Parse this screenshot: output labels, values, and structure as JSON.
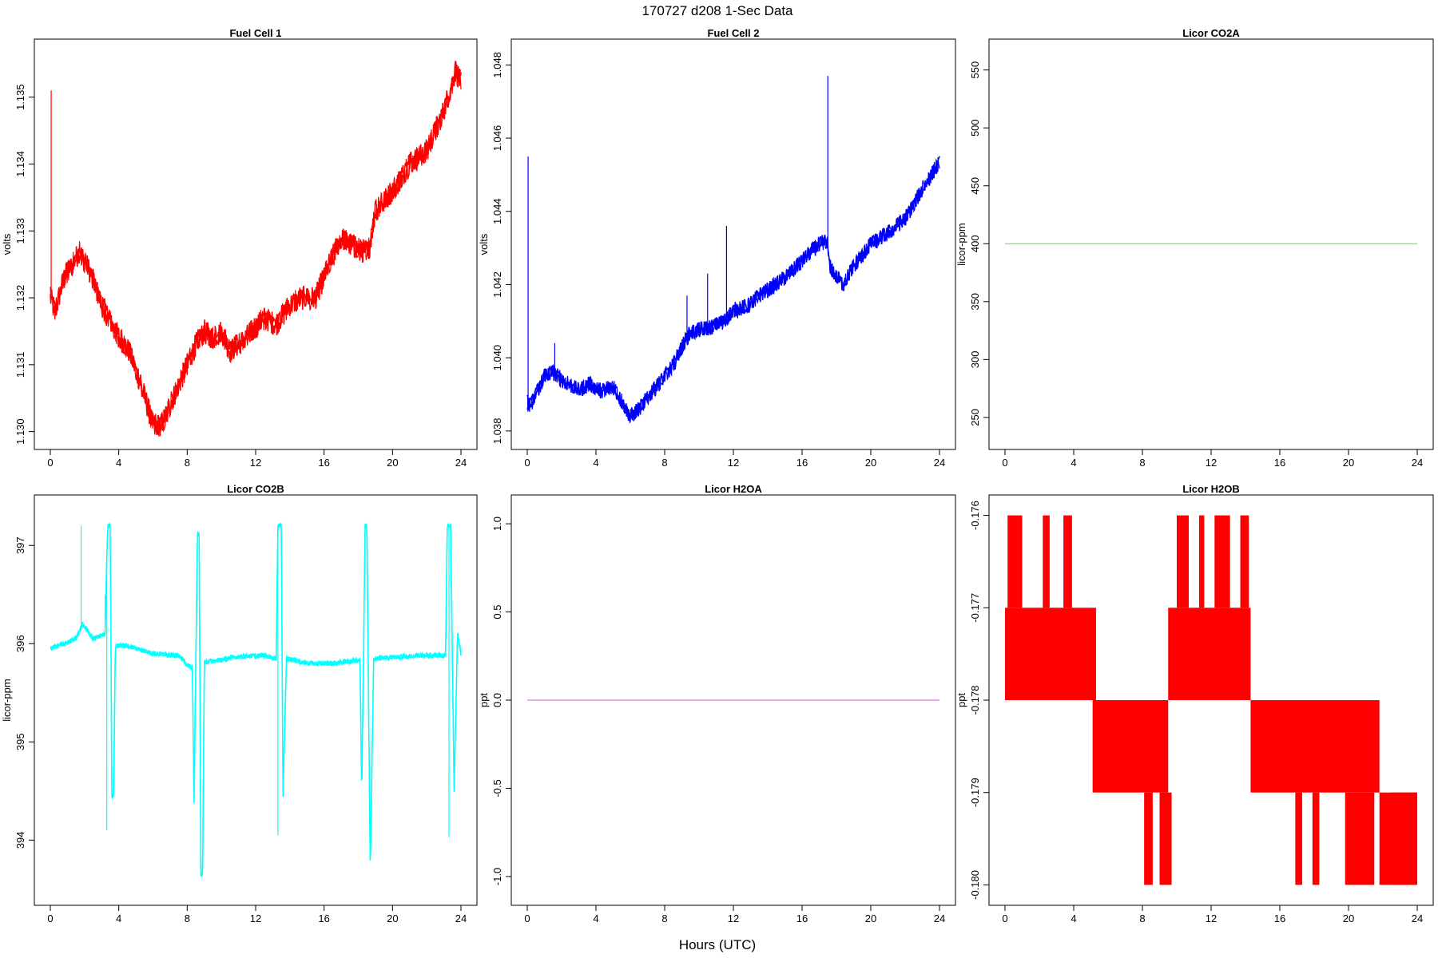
{
  "figure": {
    "title": "170727   d208   1-Sec Data",
    "xlabel": "Hours (UTC)"
  },
  "chart_data": [
    {
      "type": "line",
      "title": "Fuel Cell 1",
      "ylabel": "volts",
      "color": "#ff0000",
      "xlim": [
        0,
        24
      ],
      "ylim": [
        1.1299,
        1.1357
      ],
      "xticks": [
        0,
        4,
        8,
        12,
        16,
        20,
        24
      ],
      "yticks": [
        1.13,
        1.131,
        1.132,
        1.133,
        1.134,
        1.135
      ],
      "ytick_labels": [
        "1.130",
        "1.131",
        "1.132",
        "1.133",
        "1.134",
        "1.135"
      ],
      "noise": 0.00018,
      "spikes": [
        [
          0.05,
          1.1351
        ]
      ],
      "x": [
        0,
        0.3,
        0.8,
        1.3,
        1.7,
        2.3,
        3.0,
        3.8,
        4.6,
        5.3,
        6.0,
        6.5,
        7.0,
        7.5,
        8.0,
        8.5,
        9.0,
        9.5,
        10.0,
        10.5,
        11.0,
        11.8,
        12.5,
        13.2,
        14.0,
        14.8,
        15.5,
        16.3,
        17.0,
        17.6,
        18.2,
        18.6,
        19.0,
        20.0,
        21.0,
        22.0,
        23.0,
        23.7,
        24.0
      ],
      "y": [
        1.132,
        1.1318,
        1.1323,
        1.1325,
        1.1327,
        1.1324,
        1.1319,
        1.1315,
        1.1312,
        1.1307,
        1.1301,
        1.1301,
        1.1304,
        1.1307,
        1.131,
        1.1313,
        1.1315,
        1.1314,
        1.1315,
        1.1312,
        1.1313,
        1.1315,
        1.1317,
        1.1316,
        1.1319,
        1.132,
        1.132,
        1.1325,
        1.1329,
        1.1328,
        1.1327,
        1.1327,
        1.1333,
        1.1336,
        1.134,
        1.1342,
        1.1348,
        1.1354,
        1.1352
      ]
    },
    {
      "type": "line",
      "title": "Fuel Cell 2",
      "ylabel": "volts",
      "color": "#0000ff",
      "xlim": [
        0,
        24
      ],
      "ylim": [
        1.0378,
        1.0484
      ],
      "xticks": [
        0,
        4,
        8,
        12,
        16,
        20,
        24
      ],
      "yticks": [
        1.038,
        1.04,
        1.042,
        1.044,
        1.046,
        1.048
      ],
      "ytick_labels": [
        "1.038",
        "1.040",
        "1.042",
        "1.044",
        "1.046",
        "1.048"
      ],
      "noise": 0.00022,
      "spikes": [
        [
          0.05,
          1.0455
        ],
        [
          1.6,
          1.0404
        ],
        [
          9.3,
          1.0417
        ],
        [
          10.5,
          1.0423
        ],
        [
          11.6,
          1.0436
        ],
        [
          17.5,
          1.0477
        ]
      ],
      "x": [
        0,
        0.2,
        1.0,
        1.5,
        2.0,
        3.0,
        3.6,
        4.3,
        5.0,
        5.5,
        6.0,
        6.5,
        7.5,
        8.5,
        9.0,
        9.5,
        10.5,
        11.5,
        12.0,
        12.8,
        13.5,
        14.5,
        15.5,
        16.3,
        17.0,
        17.45,
        17.6,
        18.0,
        18.4,
        19.0,
        20.0,
        21.0,
        22.0,
        23.0,
        23.8,
        24.0
      ],
      "y": [
        1.0388,
        1.0387,
        1.0395,
        1.0396,
        1.0394,
        1.0391,
        1.0393,
        1.0391,
        1.0392,
        1.0388,
        1.0384,
        1.0386,
        1.0392,
        1.0398,
        1.0403,
        1.0407,
        1.0408,
        1.041,
        1.0413,
        1.0414,
        1.0417,
        1.042,
        1.0424,
        1.0428,
        1.0431,
        1.0432,
        1.0425,
        1.0422,
        1.042,
        1.0425,
        1.0431,
        1.0434,
        1.0438,
        1.0446,
        1.0452,
        1.0453
      ]
    },
    {
      "type": "line",
      "title": "Licor CO2A",
      "ylabel": "licor-ppm",
      "color": "#55ee55",
      "xlim": [
        0,
        24
      ],
      "ylim": [
        232,
        567
      ],
      "xticks": [
        0,
        4,
        8,
        12,
        16,
        20,
        24
      ],
      "yticks": [
        250,
        300,
        350,
        400,
        450,
        500,
        550
      ],
      "ytick_labels": [
        "250",
        "300",
        "350",
        "400",
        "450",
        "500",
        "550"
      ],
      "noise": 0,
      "spikes": [],
      "x": [
        0,
        24
      ],
      "y": [
        400,
        400
      ]
    },
    {
      "type": "line",
      "title": "Licor CO2B",
      "ylabel": "licor-ppm",
      "color": "#00ffff",
      "xlim": [
        0,
        24
      ],
      "ylim": [
        393.45,
        397.4
      ],
      "xticks": [
        0,
        4,
        8,
        12,
        16,
        20,
        24
      ],
      "yticks": [
        394,
        395,
        396,
        397
      ],
      "ytick_labels": [
        "394",
        "395",
        "396",
        "397"
      ],
      "noise": 0.025,
      "spikes": [
        [
          1.8,
          397.2
        ],
        [
          3.2,
          396.5
        ],
        [
          3.3,
          394.1
        ],
        [
          13.3,
          394.05
        ],
        [
          23.3,
          394.03
        ]
      ],
      "x": [
        0,
        0.8,
        1.5,
        1.9,
        2.5,
        3.2,
        3.35,
        3.5,
        3.6,
        3.7,
        3.8,
        4.5,
        6.0,
        7.5,
        8.0,
        8.3,
        8.4,
        8.6,
        8.7,
        8.8,
        8.9,
        9.0,
        9.6,
        11.0,
        12.5,
        13.2,
        13.3,
        13.5,
        13.6,
        13.8,
        15.0,
        16.5,
        17.5,
        18.1,
        18.2,
        18.4,
        18.5,
        18.7,
        18.9,
        20.0,
        21.5,
        23.1,
        23.2,
        23.4,
        23.6,
        23.8,
        24.0
      ],
      "y": [
        395.95,
        396.0,
        396.05,
        396.2,
        396.05,
        396.1,
        397.2,
        397.2,
        394.45,
        394.45,
        395.98,
        395.98,
        395.9,
        395.88,
        395.78,
        395.76,
        394.4,
        397.15,
        397.1,
        393.65,
        393.65,
        395.82,
        395.82,
        395.87,
        395.88,
        395.85,
        397.2,
        397.2,
        394.45,
        395.85,
        395.8,
        395.8,
        395.82,
        395.84,
        394.45,
        397.2,
        397.2,
        393.7,
        395.85,
        395.86,
        395.88,
        395.88,
        397.2,
        397.2,
        394.5,
        396.1,
        395.9
      ]
    },
    {
      "type": "line",
      "title": "Licor H2OA",
      "ylabel": "ppt",
      "color": "#e377e3",
      "xlim": [
        0,
        24
      ],
      "ylim": [
        -1.1,
        1.1
      ],
      "xticks": [
        0,
        4,
        8,
        12,
        16,
        20,
        24
      ],
      "yticks": [
        -1.0,
        -0.5,
        0.0,
        0.5,
        1.0
      ],
      "ytick_labels": [
        "-1.0",
        "-0.5",
        "0.0",
        "0.5",
        "1.0"
      ],
      "noise": 0,
      "spikes": [],
      "x": [
        0,
        24
      ],
      "y": [
        0,
        0
      ]
    },
    {
      "type": "line",
      "title": "Licor H2OB",
      "ylabel": "ppt",
      "color": "#ff0000",
      "xlim": [
        0,
        24
      ],
      "ylim": [
        -0.1801,
        -0.1759
      ],
      "xticks": [
        0,
        4,
        8,
        12,
        16,
        20,
        24
      ],
      "yticks": [
        -0.18,
        -0.179,
        -0.178,
        -0.177,
        -0.176
      ],
      "ytick_labels": [
        "-0.180",
        "-0.179",
        "-0.178",
        "-0.177",
        "-0.176"
      ],
      "noise": 0,
      "spikes": [],
      "x": [],
      "y": [],
      "bands": [
        {
          "x0": 0.0,
          "x1": 5.3,
          "y0": -0.178,
          "y1": -0.177
        },
        {
          "x0": 5.1,
          "x1": 9.5,
          "y0": -0.179,
          "y1": -0.178
        },
        {
          "x0": 9.5,
          "x1": 14.3,
          "y0": -0.178,
          "y1": -0.177
        },
        {
          "x0": 14.3,
          "x1": 21.8,
          "y0": -0.179,
          "y1": -0.178
        },
        {
          "x0": 21.8,
          "x1": 24.0,
          "y0": -0.18,
          "y1": -0.179
        },
        {
          "x0": 0.15,
          "x1": 1.0,
          "y0": -0.177,
          "y1": -0.176
        },
        {
          "x0": 2.2,
          "x1": 2.6,
          "y0": -0.177,
          "y1": -0.176
        },
        {
          "x0": 3.4,
          "x1": 3.9,
          "y0": -0.177,
          "y1": -0.176
        },
        {
          "x0": 10.0,
          "x1": 10.7,
          "y0": -0.177,
          "y1": -0.176
        },
        {
          "x0": 11.3,
          "x1": 11.6,
          "y0": -0.177,
          "y1": -0.176
        },
        {
          "x0": 12.2,
          "x1": 13.1,
          "y0": -0.177,
          "y1": -0.176
        },
        {
          "x0": 13.7,
          "x1": 14.2,
          "y0": -0.177,
          "y1": -0.176
        },
        {
          "x0": 8.1,
          "x1": 8.6,
          "y0": -0.18,
          "y1": -0.179
        },
        {
          "x0": 9.0,
          "x1": 9.7,
          "y0": -0.18,
          "y1": -0.179
        },
        {
          "x0": 16.9,
          "x1": 17.3,
          "y0": -0.18,
          "y1": -0.179
        },
        {
          "x0": 17.9,
          "x1": 18.3,
          "y0": -0.18,
          "y1": -0.179
        },
        {
          "x0": 19.8,
          "x1": 21.5,
          "y0": -0.18,
          "y1": -0.179
        },
        {
          "x0": 22.5,
          "x1": 24.0,
          "y0": -0.18,
          "y1": -0.179
        }
      ]
    }
  ]
}
